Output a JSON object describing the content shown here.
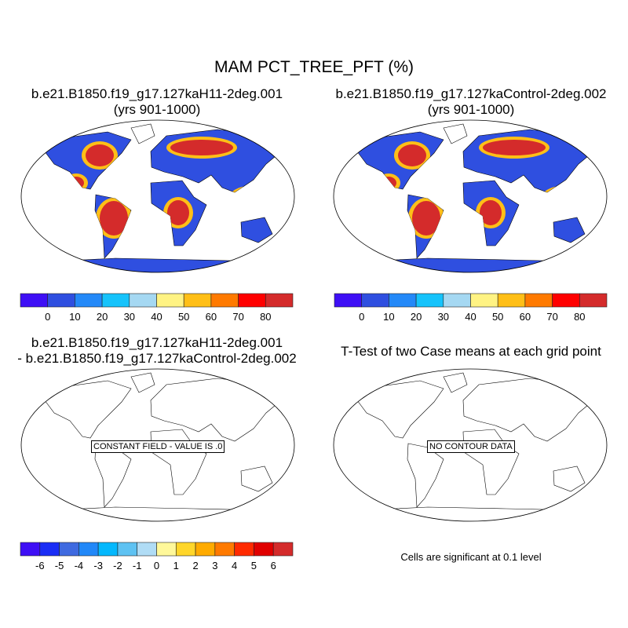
{
  "title": "MAM PCT_TREE_PFT (%)",
  "panels": [
    {
      "title": "b.e21.B1850.f19_g17.127kaH11-2deg.001",
      "subtitle": "(yrs 901-1000)"
    },
    {
      "title": "b.e21.B1850.f19_g17.127kaControl-2deg.002",
      "subtitle": "(yrs 901-1000)"
    },
    {
      "title": "b.e21.B1850.f19_g17.127kaH11-2deg.001",
      "subtitle": "- b.e21.B1850.f19_g17.127kaControl-2deg.002",
      "annotation": "CONSTANT FIELD - VALUE IS .0"
    },
    {
      "title": "T-Test of two Case means at each grid point",
      "annotation": "NO CONTOUR DATA",
      "footer": "Cells are significant at 0.1 level"
    }
  ],
  "colorbar_main": {
    "labels": [
      "0",
      "10",
      "20",
      "30",
      "40",
      "50",
      "60",
      "70",
      "80"
    ],
    "colors": [
      "#3e0ff5",
      "#2f4fe0",
      "#2489f8",
      "#16c3fb",
      "#a5d8f2",
      "#fff383",
      "#ffbf17",
      "#ff7a00",
      "#ff0000",
      "#d42b2b"
    ]
  },
  "colorbar_diff": {
    "labels": [
      "-6",
      "-5",
      "-4",
      "-3",
      "-2",
      "-1",
      "0",
      "1",
      "2",
      "3",
      "4",
      "5",
      "6"
    ],
    "colors": [
      "#3e0ff5",
      "#1a2df5",
      "#3f6ae0",
      "#2288f8",
      "#04b8fd",
      "#5ec2f2",
      "#b0dcf5",
      "#fff89a",
      "#ffd62a",
      "#ffab00",
      "#ff7a00",
      "#ff2a00",
      "#e00000",
      "#d42b2b"
    ]
  },
  "map_colors": {
    "land_low": "#2f4fe0",
    "land_high": "#d42b2b"
  }
}
